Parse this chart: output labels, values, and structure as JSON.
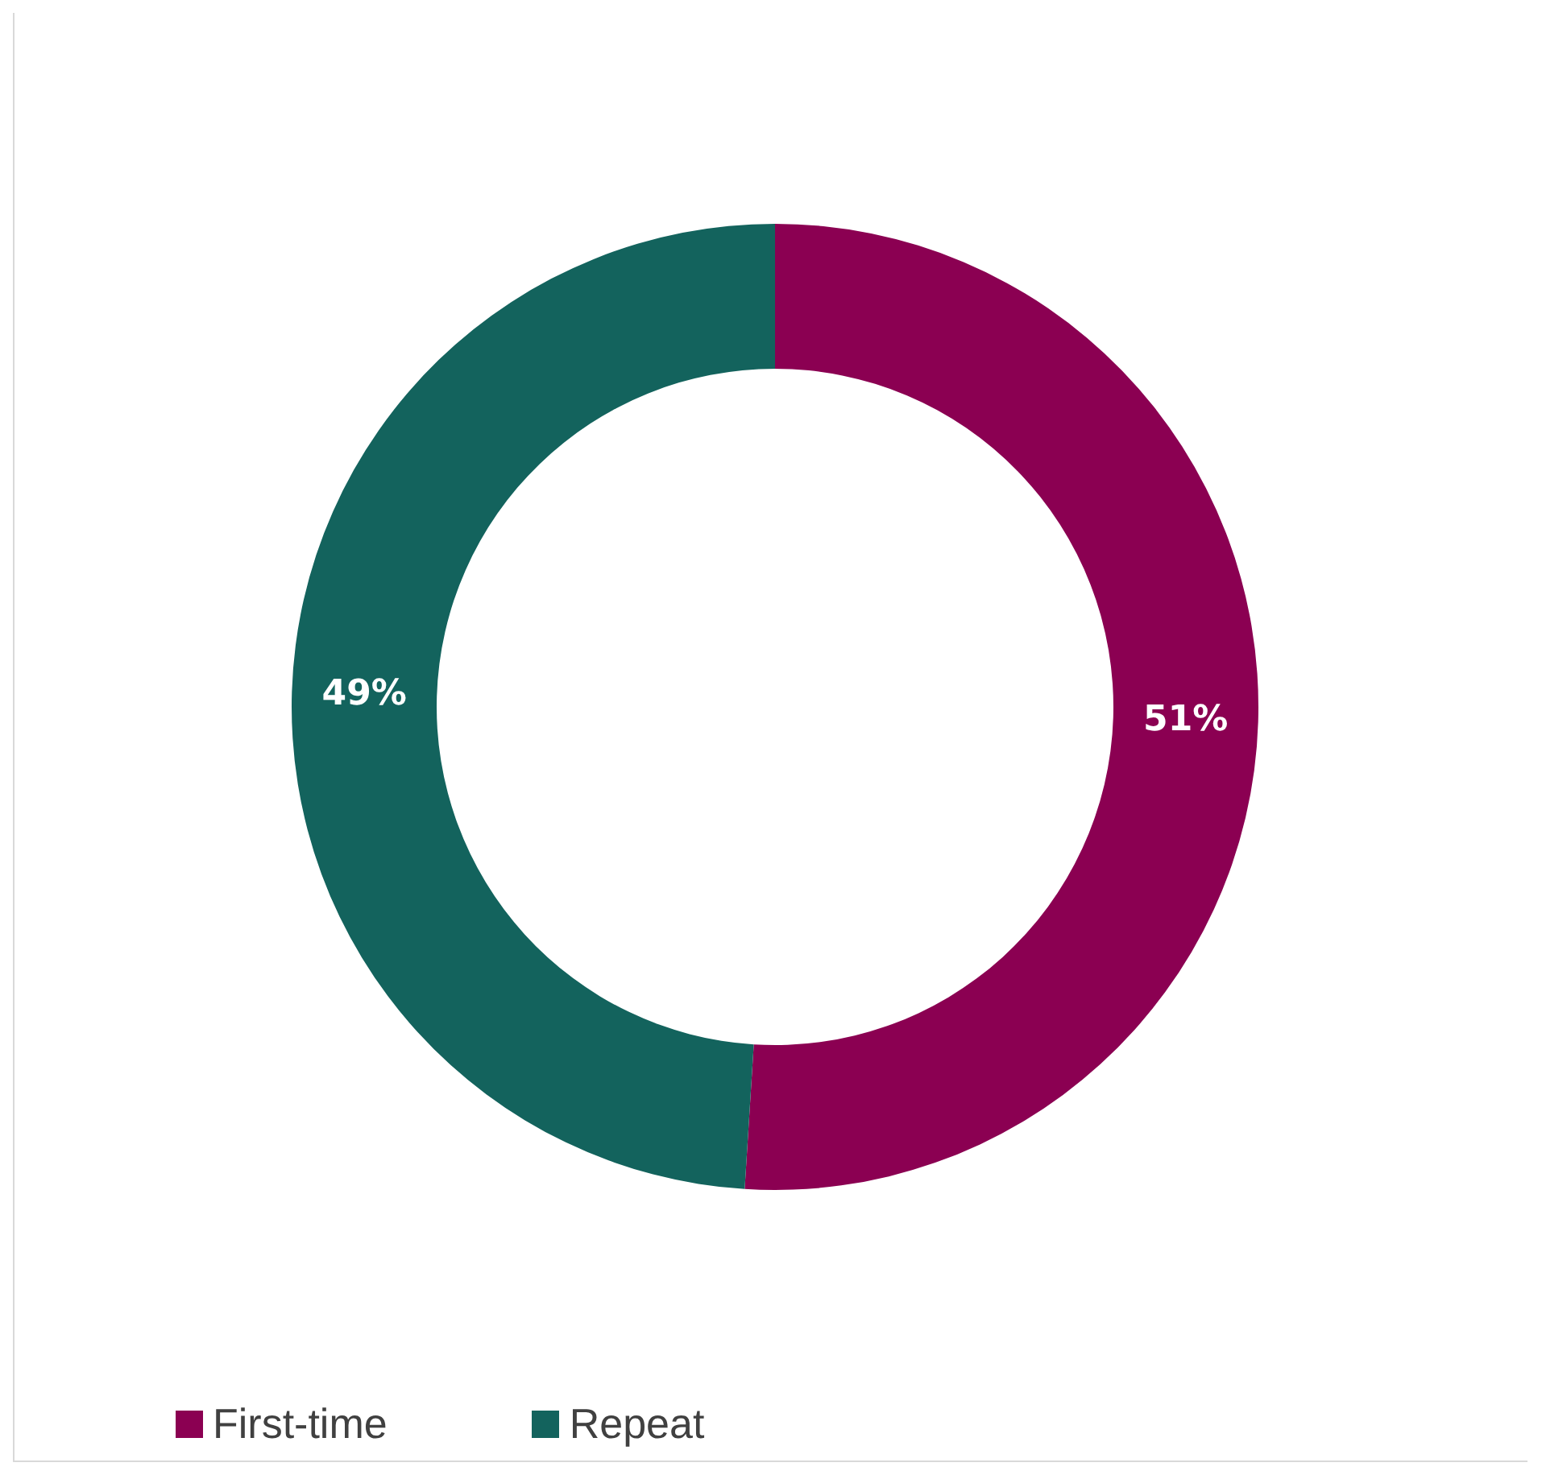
{
  "chart_data": {
    "type": "donut",
    "categories": [
      "First-time",
      "Repeat"
    ],
    "values": [
      51,
      49
    ],
    "colors": [
      "#8b0052",
      "#13635d"
    ],
    "value_labels": [
      "51%",
      "49%"
    ],
    "legend": "bottom left"
  }
}
